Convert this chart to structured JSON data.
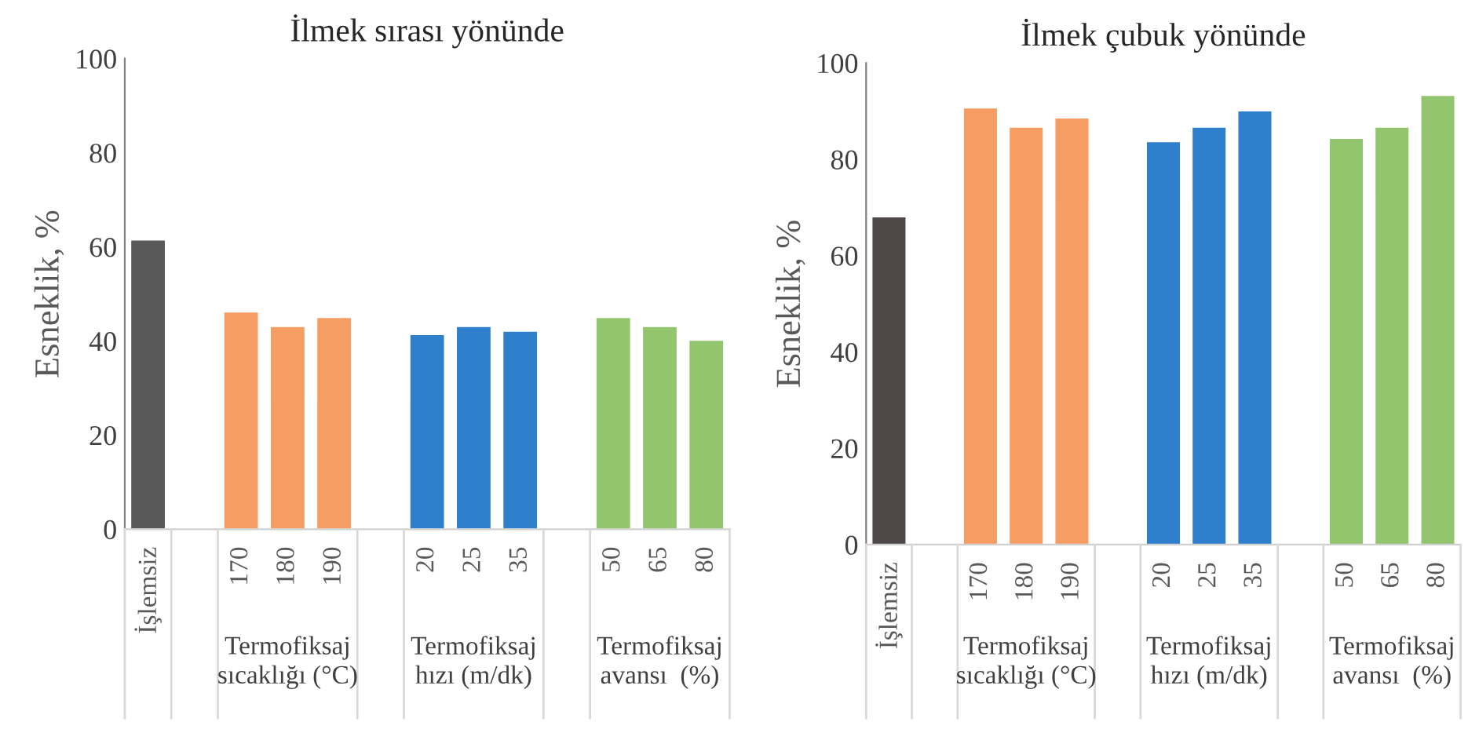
{
  "chart_data": [
    {
      "type": "bar",
      "title": "İlmek sırası yönünde",
      "ylabel": "Esneklik, %",
      "categories": [
        "İşlemsiz",
        null,
        "170",
        "180",
        "190",
        null,
        "20",
        "25",
        "35",
        null,
        "50",
        "65",
        "80"
      ],
      "values": [
        61.5,
        null,
        46.2,
        43.1,
        45.0,
        null,
        41.4,
        43.1,
        42.1,
        null,
        45.0,
        43.1,
        40.2
      ],
      "colors": [
        "#595959",
        null,
        "#f59d62",
        "#f59d62",
        "#f59d62",
        null,
        "#2e7fcc",
        "#2e7fcc",
        "#2e7fcc",
        null,
        "#93c56f",
        "#93c56f",
        "#93c56f"
      ],
      "ylim": [
        0,
        100
      ],
      "yticks": [
        0,
        20,
        40,
        60,
        80,
        100
      ],
      "grid": false,
      "legend": false,
      "annotations": [
        "Termofiksaj\nsıcaklığı (°C)",
        "Termofiksaj\nhızı (m/dk)",
        "Termofiksaj\navansı  (%)"
      ]
    },
    {
      "type": "bar",
      "title": "İlmek çubuk yönünde",
      "ylabel": "Esneklik, %",
      "categories": [
        "İşlemsiz",
        null,
        "170",
        "180",
        "190",
        null,
        "20",
        "25",
        "35",
        null,
        "50",
        "65",
        "80"
      ],
      "values": [
        68.1,
        null,
        90.7,
        86.7,
        88.6,
        null,
        83.7,
        86.7,
        90.1,
        null,
        84.4,
        86.7,
        93.3
      ],
      "colors": [
        "#4e4848",
        null,
        "#f59d62",
        "#f59d62",
        "#f59d62",
        null,
        "#2e7fcc",
        "#2e7fcc",
        "#2e7fcc",
        null,
        "#93c56f",
        "#93c56f",
        "#93c56f"
      ],
      "ylim": [
        0,
        100
      ],
      "yticks": [
        0,
        20,
        40,
        60,
        80,
        100
      ],
      "grid": false,
      "legend": false,
      "annotations": [
        "Termofiksaj\nsıcaklığı (°C)",
        "Termofiksaj\nhızı (m/dk)",
        "Termofiksaj\navansı  (%)"
      ]
    }
  ]
}
